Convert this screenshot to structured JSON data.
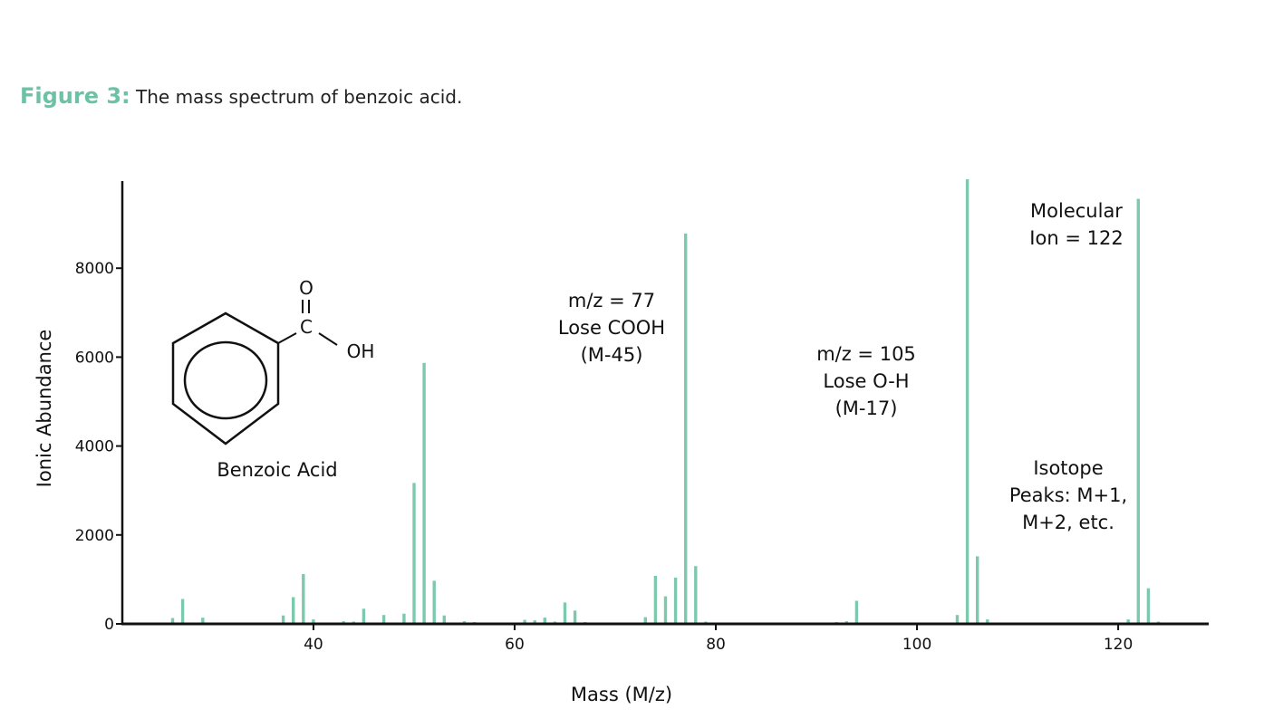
{
  "caption": {
    "label": "Figure 3:",
    "text": "The mass spectrum of benzoic acid."
  },
  "colors": {
    "bar": "#7cc9ad",
    "accent": "#6cc2a5",
    "axis": "#111111"
  },
  "molecule": {
    "name": "Benzoic Acid",
    "o_label": "O",
    "c_label": "C",
    "oh_label": "OH"
  },
  "annotations": {
    "a77": [
      "m/z = 77",
      "Lose COOH",
      "(M-45)"
    ],
    "a105": [
      "m/z = 105",
      "Lose O-H",
      "(M-17)"
    ],
    "molecular": [
      "Molecular",
      "Ion = 122"
    ],
    "isotope": [
      "Isotope",
      "Peaks: M+1,",
      "M+2, etc."
    ]
  },
  "chart_data": {
    "type": "bar",
    "xlabel": "Mass (M/z)",
    "ylabel": "Ionic Abundance",
    "xlim": [
      21,
      129
    ],
    "ylim": [
      0,
      10000
    ],
    "xticks": [
      40,
      60,
      80,
      100,
      120
    ],
    "yticks": [
      0,
      2000,
      4000,
      6000,
      8000
    ],
    "grid": false,
    "points": [
      {
        "x": 26,
        "y": 130
      },
      {
        "x": 27,
        "y": 560
      },
      {
        "x": 29,
        "y": 140
      },
      {
        "x": 37,
        "y": 190
      },
      {
        "x": 38,
        "y": 600
      },
      {
        "x": 39,
        "y": 1120
      },
      {
        "x": 40,
        "y": 100
      },
      {
        "x": 43,
        "y": 60
      },
      {
        "x": 44,
        "y": 50
      },
      {
        "x": 45,
        "y": 340
      },
      {
        "x": 47,
        "y": 200
      },
      {
        "x": 49,
        "y": 230
      },
      {
        "x": 50,
        "y": 3170
      },
      {
        "x": 51,
        "y": 5870
      },
      {
        "x": 52,
        "y": 970
      },
      {
        "x": 53,
        "y": 190
      },
      {
        "x": 55,
        "y": 60
      },
      {
        "x": 56,
        "y": 40
      },
      {
        "x": 58,
        "y": 30
      },
      {
        "x": 61,
        "y": 90
      },
      {
        "x": 62,
        "y": 80
      },
      {
        "x": 63,
        "y": 140
      },
      {
        "x": 64,
        "y": 50
      },
      {
        "x": 65,
        "y": 480
      },
      {
        "x": 66,
        "y": 300
      },
      {
        "x": 67,
        "y": 40
      },
      {
        "x": 73,
        "y": 150
      },
      {
        "x": 74,
        "y": 1080
      },
      {
        "x": 75,
        "y": 620
      },
      {
        "x": 76,
        "y": 1040
      },
      {
        "x": 77,
        "y": 8780
      },
      {
        "x": 78,
        "y": 1300
      },
      {
        "x": 79,
        "y": 50
      },
      {
        "x": 90,
        "y": 30
      },
      {
        "x": 92,
        "y": 40
      },
      {
        "x": 93,
        "y": 60
      },
      {
        "x": 94,
        "y": 520
      },
      {
        "x": 95,
        "y": 30
      },
      {
        "x": 104,
        "y": 200
      },
      {
        "x": 105,
        "y": 10000
      },
      {
        "x": 106,
        "y": 1520
      },
      {
        "x": 107,
        "y": 100
      },
      {
        "x": 121,
        "y": 100
      },
      {
        "x": 122,
        "y": 9560
      },
      {
        "x": 123,
        "y": 800
      },
      {
        "x": 124,
        "y": 50
      }
    ]
  }
}
